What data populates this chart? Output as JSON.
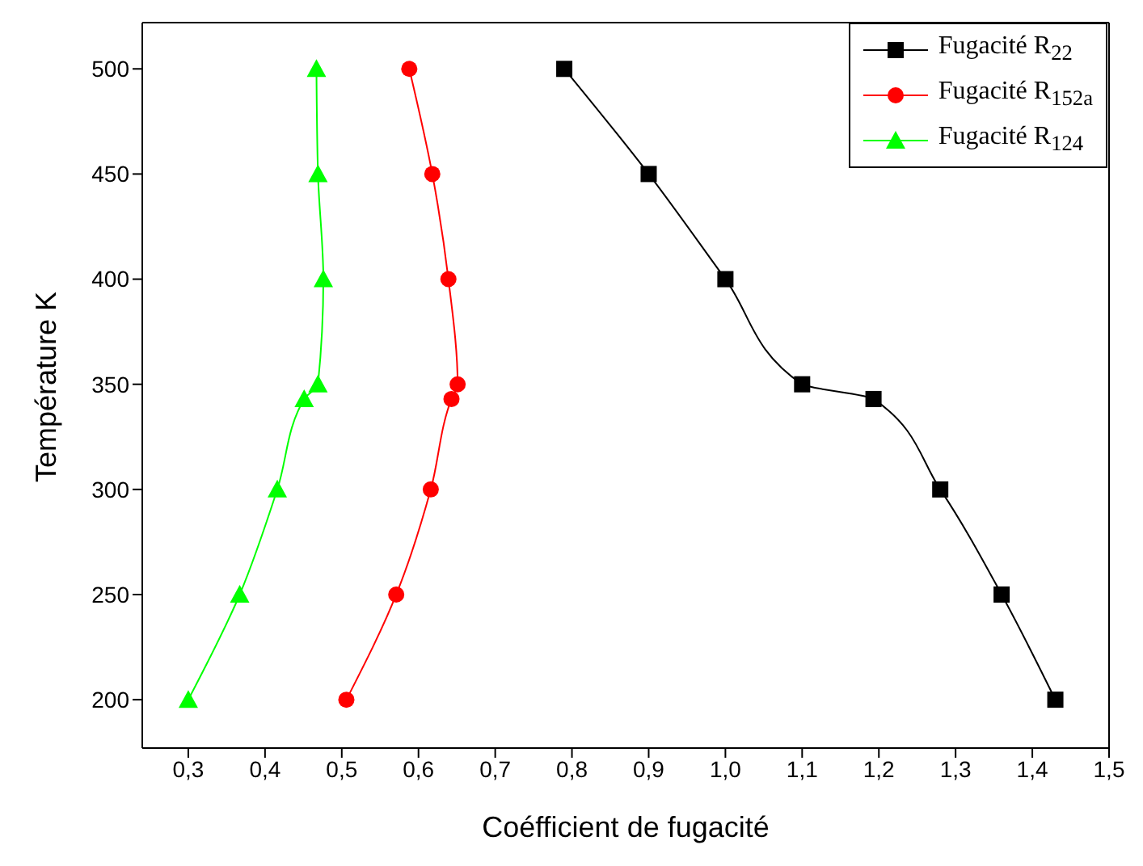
{
  "chart_data": {
    "type": "line",
    "xlabel": "Coéfficient de fugacité",
    "ylabel": "Température K",
    "xlim": [
      0.24,
      1.5
    ],
    "ylim": [
      177,
      522
    ],
    "xticks": [
      {
        "value": 0.3,
        "label": "0,3"
      },
      {
        "value": 0.4,
        "label": "0,4"
      },
      {
        "value": 0.5,
        "label": "0,5"
      },
      {
        "value": 0.6,
        "label": "0,6"
      },
      {
        "value": 0.7,
        "label": "0,7"
      },
      {
        "value": 0.8,
        "label": "0,8"
      },
      {
        "value": 0.9,
        "label": "0,9"
      },
      {
        "value": 1.0,
        "label": "1,0"
      },
      {
        "value": 1.1,
        "label": "1,1"
      },
      {
        "value": 1.2,
        "label": "1,2"
      },
      {
        "value": 1.3,
        "label": "1,3"
      },
      {
        "value": 1.4,
        "label": "1,4"
      },
      {
        "value": 1.5,
        "label": "1,5"
      }
    ],
    "yticks": [
      200,
      250,
      300,
      350,
      400,
      450,
      500
    ],
    "legend": "top right",
    "series": [
      {
        "name": "Fugacité R$_{22}$",
        "color": "#000000",
        "marker": "square",
        "x": [
          1.43,
          1.36,
          1.28,
          1.193,
          1.1,
          1.0,
          0.9,
          0.79
        ],
        "values": [
          200,
          250,
          300,
          343,
          350,
          400,
          450,
          500
        ]
      },
      {
        "name": "Fugacité R$_{152a}$",
        "color": "#ff0000",
        "marker": "circle",
        "x": [
          0.506,
          0.571,
          0.616,
          0.643,
          0.651,
          0.639,
          0.618,
          0.588
        ],
        "values": [
          200,
          250,
          300,
          343,
          350,
          400,
          450,
          500
        ]
      },
      {
        "name": "Fugacité R$_{124}$",
        "color": "#00ff00",
        "marker": "triangle",
        "x": [
          0.3,
          0.367,
          0.416,
          0.451,
          0.469,
          0.476,
          0.469,
          0.467
        ],
        "values": [
          200,
          250,
          300,
          343,
          350,
          400,
          450,
          500
        ]
      }
    ]
  }
}
